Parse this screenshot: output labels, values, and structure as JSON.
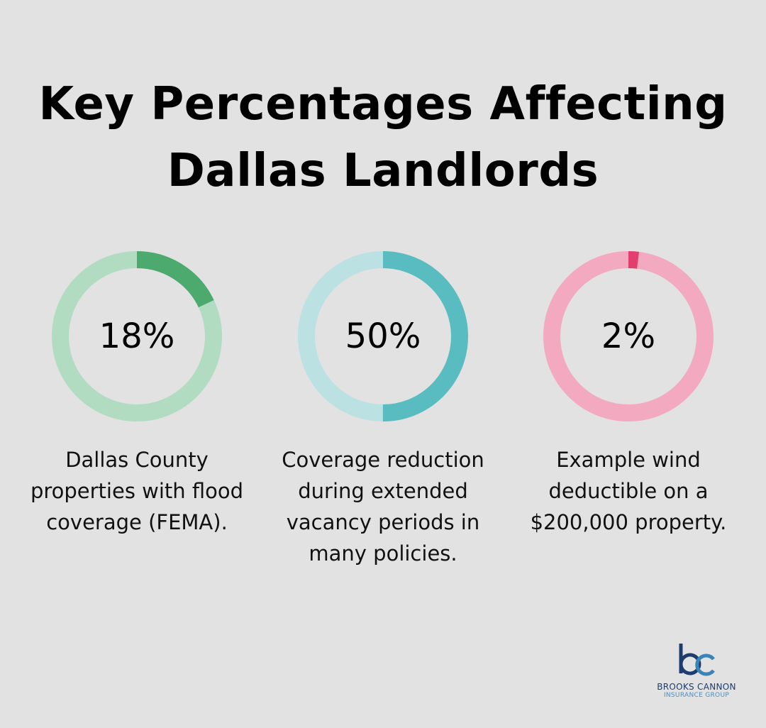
{
  "title_line1": "Key Percentages Affecting",
  "title_line2": "Dallas Landlords",
  "chart_data": [
    {
      "type": "pie",
      "variant": "donut",
      "values": [
        18,
        82
      ],
      "label": "18%",
      "description": "Dallas County properties with flood coverage (FEMA).",
      "colors": {
        "fill": "#4caa6e",
        "track": "#b1dcc1"
      }
    },
    {
      "type": "pie",
      "variant": "donut",
      "values": [
        50,
        50
      ],
      "label": "50%",
      "description": "Coverage reduction during extended vacancy periods in many policies.",
      "colors": {
        "fill": "#59bcc0",
        "track": "#bbe1e3"
      }
    },
    {
      "type": "pie",
      "variant": "donut",
      "values": [
        2,
        98
      ],
      "label": "2%",
      "description": "Example wind deductible on a $200,000 property.",
      "colors": {
        "fill": "#e23f6e",
        "track": "#f3a9bf"
      }
    }
  ],
  "logo": {
    "text": "bc",
    "line1": "BROOKS CANNON",
    "line2": "INSURANCE GROUP",
    "colors": {
      "dark": "#1e3c6e",
      "light": "#3a84b8"
    }
  }
}
